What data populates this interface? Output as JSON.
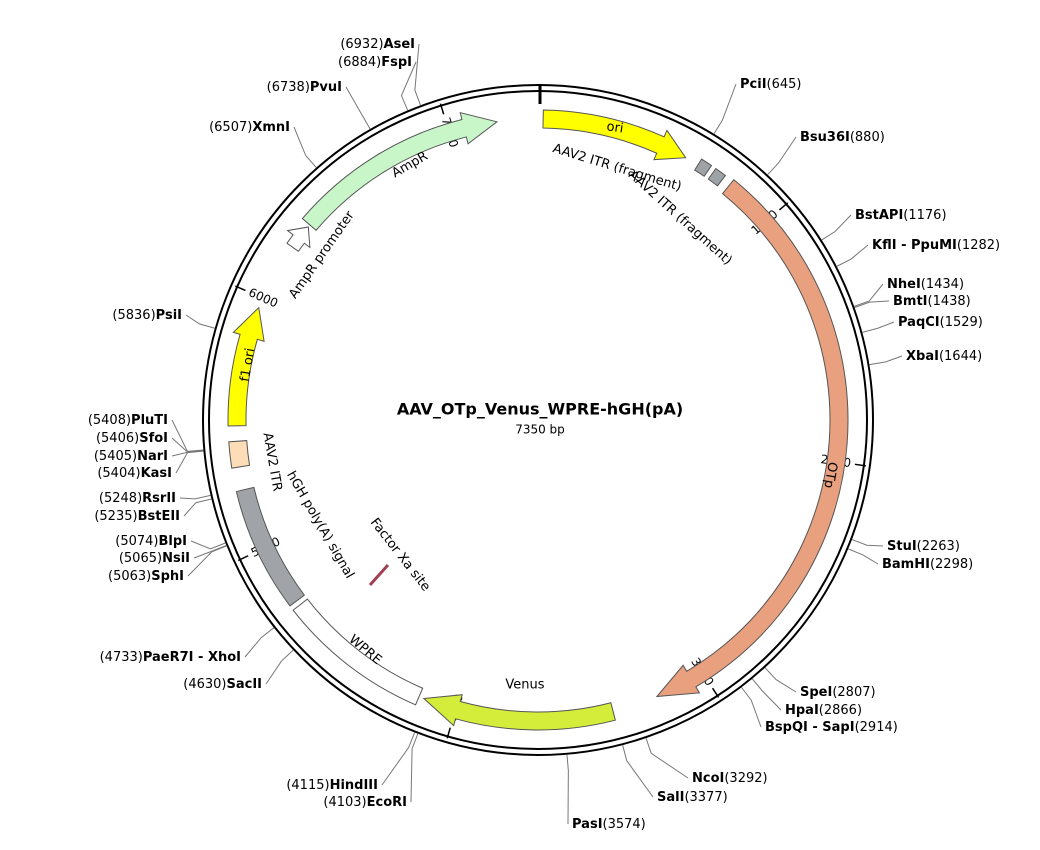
{
  "plasmid": {
    "name": "AAV_OTp_Venus_WPRE-hGH(pA)",
    "size": {
      "value": 7350,
      "label": "7350 bp"
    },
    "ticks": [
      1000,
      2000,
      3000,
      4000,
      5000,
      6000,
      7000
    ],
    "features": [
      {
        "label": "ori"
      },
      {
        "label": "AAV2 ITR (fragment)"
      },
      {
        "label": "AAV2 ITR (fragment)"
      },
      {
        "label": "OTp"
      },
      {
        "label": "Venus"
      },
      {
        "label": "WPRE"
      },
      {
        "label": "hGH poly(A) signal"
      },
      {
        "label": "AAV2 ITR"
      },
      {
        "label": "f1 ori"
      },
      {
        "label": "AmpR promoter"
      },
      {
        "label": "AmpR"
      },
      {
        "label": "Factor Xa site"
      }
    ],
    "sites": [
      {
        "name": "PciI",
        "position": {
          "value": 645,
          "label": "(645)"
        }
      },
      {
        "name": "Bsu36I",
        "position": {
          "value": 880,
          "label": "(880)"
        }
      },
      {
        "name": "BstAPI",
        "position": {
          "value": 1176,
          "label": "(1176)"
        }
      },
      {
        "name": "KflI - PpuMI",
        "position": {
          "value": 1282,
          "label": "(1282)"
        }
      },
      {
        "name": "NheI",
        "position": {
          "value": 1434,
          "label": "(1434)"
        }
      },
      {
        "name": "BmtI",
        "position": {
          "value": 1438,
          "label": "(1438)"
        }
      },
      {
        "name": "PaqCI",
        "position": {
          "value": 1529,
          "label": "(1529)"
        }
      },
      {
        "name": "XbaI",
        "position": {
          "value": 1644,
          "label": "(1644)"
        }
      },
      {
        "name": "StuI",
        "position": {
          "value": 2263,
          "label": "(2263)"
        }
      },
      {
        "name": "BamHI",
        "position": {
          "value": 2298,
          "label": "(2298)"
        }
      },
      {
        "name": "SpeI",
        "position": {
          "value": 2807,
          "label": "(2807)"
        }
      },
      {
        "name": "HpaI",
        "position": {
          "value": 2866,
          "label": "(2866)"
        }
      },
      {
        "name": "BspQI - SapI",
        "position": {
          "value": 2914,
          "label": "(2914)"
        }
      },
      {
        "name": "NcoI",
        "position": {
          "value": 3292,
          "label": "(3292)"
        }
      },
      {
        "name": "SalI",
        "position": {
          "value": 3377,
          "label": "(3377)"
        }
      },
      {
        "name": "PasI",
        "position": {
          "value": 3574,
          "label": "(3574)"
        }
      },
      {
        "name": "EcoRI",
        "position": {
          "value": 4103,
          "label": "(4103)"
        }
      },
      {
        "name": "HindIII",
        "position": {
          "value": 4115,
          "label": "(4115)"
        }
      },
      {
        "name": "SacII",
        "position": {
          "value": 4630,
          "label": "(4630)"
        }
      },
      {
        "name": "PaeR7I - XhoI",
        "position": {
          "value": 4733,
          "label": "(4733)"
        }
      },
      {
        "name": "SphI",
        "position": {
          "value": 5063,
          "label": "(5063)"
        }
      },
      {
        "name": "NsiI",
        "position": {
          "value": 5065,
          "label": "(5065)"
        }
      },
      {
        "name": "BlpI",
        "position": {
          "value": 5074,
          "label": "(5074)"
        }
      },
      {
        "name": "BstEII",
        "position": {
          "value": 5235,
          "label": "(5235)"
        }
      },
      {
        "name": "RsrII",
        "position": {
          "value": 5248,
          "label": "(5248)"
        }
      },
      {
        "name": "KasI",
        "position": {
          "value": 5404,
          "label": "(5404)"
        }
      },
      {
        "name": "NarI",
        "position": {
          "value": 5405,
          "label": "(5405)"
        }
      },
      {
        "name": "SfoI",
        "position": {
          "value": 5406,
          "label": "(5406)"
        }
      },
      {
        "name": "PluTI",
        "position": {
          "value": 5408,
          "label": "(5408)"
        }
      },
      {
        "name": "PsiI",
        "position": {
          "value": 5836,
          "label": "(5836)"
        }
      },
      {
        "name": "XmnI",
        "position": {
          "value": 6507,
          "label": "(6507)"
        }
      },
      {
        "name": "PvuI",
        "position": {
          "value": 6738,
          "label": "(6738)"
        }
      },
      {
        "name": "FspI",
        "position": {
          "value": 6884,
          "label": "(6884)"
        }
      },
      {
        "name": "AseI",
        "position": {
          "value": 6932,
          "label": "(6932)"
        }
      }
    ]
  }
}
